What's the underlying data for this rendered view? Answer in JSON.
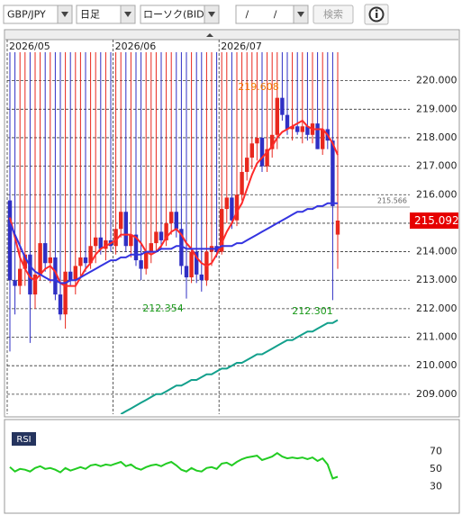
{
  "toolbar": {
    "symbol": "GBP/JPY",
    "period": "日足",
    "chart_type": "ローソク(BID)",
    "date": "/ /",
    "search": "検索"
  },
  "chart_data": [
    {
      "type": "candlestick",
      "categories": [
        "2026/05",
        null,
        null,
        null,
        null,
        null,
        null,
        null,
        null,
        null,
        null,
        null,
        null,
        null,
        null,
        null,
        null,
        null,
        null,
        null,
        null,
        "2026/06",
        null,
        null,
        null,
        null,
        null,
        null,
        null,
        null,
        null,
        null,
        null,
        null,
        null,
        null,
        null,
        null,
        null,
        null,
        null,
        null,
        "2026/07",
        null,
        null,
        null,
        null,
        null,
        null,
        null,
        null,
        null,
        null,
        null,
        null,
        null,
        null,
        null,
        null,
        null,
        null,
        null,
        null,
        null,
        null,
        null
      ],
      "open": [
        215.8,
        213.0,
        212.8,
        213.4,
        213.9,
        212.5,
        213.2,
        214.3,
        213.6,
        213.8,
        212.5,
        211.8,
        213.3,
        213.0,
        213.5,
        213.8,
        213.6,
        214.2,
        214.5,
        214.1,
        214.4,
        214.2,
        214.8,
        215.4,
        214.2,
        214.6,
        213.7,
        213.4,
        214.0,
        214.3,
        214.7,
        214.4,
        215.0,
        215.4,
        214.8,
        213.5,
        213.1,
        214.0,
        213.2,
        213.0,
        214.0,
        214.2,
        214.0,
        215.5,
        215.9,
        215.1,
        216.0,
        216.8,
        217.3,
        217.8,
        218.0,
        217.0,
        217.6,
        218.1,
        219.4,
        218.8,
        218.3,
        218.4,
        218.2,
        218.4,
        218.1,
        218.5,
        217.6,
        218.3,
        217.9,
        214.6
      ],
      "high": 219.608,
      "low": [
        210.5,
        211.8,
        212.5,
        212.8,
        210.8,
        212.0,
        213.0,
        213.3,
        212.9,
        212.3,
        211.6,
        211.3,
        212.8,
        212.5,
        213.1,
        213.3,
        213.4,
        213.6,
        213.9,
        213.7,
        214.0,
        213.9,
        214.5,
        214.0,
        213.8,
        213.5,
        213.0,
        213.2,
        213.6,
        214.0,
        214.1,
        214.2,
        214.6,
        214.5,
        213.2,
        212.354,
        212.9,
        212.9,
        212.6,
        212.8,
        213.5,
        213.8,
        213.9,
        215.0,
        214.8,
        214.9,
        215.8,
        216.5,
        216.9,
        217.2,
        216.8,
        216.8,
        217.3,
        217.6,
        218.6,
        218.1,
        217.9,
        218.1,
        217.8,
        217.9,
        217.8,
        217.6,
        217.4,
        217.6,
        212.301,
        213.4
      ],
      "close": [
        213.0,
        212.8,
        213.4,
        213.9,
        212.5,
        213.2,
        214.3,
        213.6,
        213.8,
        212.5,
        211.8,
        213.3,
        213.0,
        213.5,
        213.8,
        213.6,
        214.2,
        214.5,
        214.1,
        214.4,
        214.2,
        214.8,
        215.4,
        214.2,
        214.6,
        213.7,
        213.4,
        214.0,
        214.3,
        214.7,
        214.4,
        215.0,
        215.4,
        214.8,
        213.5,
        213.1,
        214.0,
        213.2,
        213.0,
        214.0,
        214.2,
        214.0,
        215.5,
        215.9,
        215.1,
        216.0,
        216.8,
        217.3,
        217.8,
        218.0,
        217.0,
        217.6,
        218.1,
        219.4,
        218.8,
        218.3,
        218.4,
        218.2,
        218.4,
        218.1,
        218.5,
        217.6,
        218.3,
        217.9,
        215.6,
        215.092
      ],
      "up_color": "#e8281e",
      "down_color": "#2f2fc4",
      "lines": [
        {
          "color": "#ff2a2a",
          "values": [
            215.2,
            214.5,
            213.8,
            213.4,
            213.1,
            213.0,
            213.2,
            213.4,
            213.5,
            213.3,
            212.9,
            212.8,
            212.8,
            212.8,
            213.1,
            213.4,
            213.6,
            213.9,
            214.1,
            214.2,
            214.3,
            214.4,
            214.6,
            214.6,
            214.6,
            214.5,
            214.3,
            214.0,
            213.9,
            214.0,
            214.2,
            214.5,
            214.7,
            214.8,
            214.6,
            214.3,
            214.1,
            213.8,
            213.6,
            213.5,
            213.6,
            213.9,
            214.3,
            214.7,
            215.0,
            215.4,
            215.7,
            216.2,
            216.7,
            217.1,
            217.3,
            217.5,
            217.7,
            218.0,
            218.2,
            218.3,
            218.4,
            218.5,
            218.6,
            218.4,
            218.3,
            218.3,
            218.3,
            218.1,
            217.8,
            217.4
          ]
        },
        {
          "color": "#3434e0",
          "values": [
            215.0,
            214.6,
            214.2,
            213.8,
            213.5,
            213.3,
            213.2,
            213.1,
            213.0,
            213.0,
            212.9,
            212.9,
            213.0,
            213.0,
            213.1,
            213.2,
            213.3,
            213.4,
            213.5,
            213.6,
            213.7,
            213.7,
            213.8,
            213.8,
            213.9,
            213.9,
            213.9,
            214.0,
            214.0,
            214.0,
            214.1,
            214.1,
            214.1,
            214.2,
            214.2,
            214.1,
            214.1,
            214.1,
            214.1,
            214.1,
            214.1,
            214.1,
            214.2,
            214.2,
            214.2,
            214.3,
            214.3,
            214.4,
            214.5,
            214.6,
            214.7,
            214.8,
            214.9,
            215.0,
            215.1,
            215.2,
            215.3,
            215.4,
            215.4,
            215.5,
            215.5,
            215.6,
            215.6,
            215.7,
            215.7,
            215.7
          ]
        },
        {
          "color": "#13a08c",
          "values": [
            null,
            null,
            null,
            null,
            null,
            null,
            null,
            null,
            null,
            null,
            null,
            null,
            null,
            null,
            null,
            null,
            null,
            null,
            null,
            null,
            null,
            null,
            208.3,
            208.4,
            208.5,
            208.6,
            208.7,
            208.8,
            208.9,
            209.0,
            209.0,
            209.1,
            209.2,
            209.3,
            209.3,
            209.4,
            209.5,
            209.5,
            209.6,
            209.7,
            209.7,
            209.8,
            209.9,
            209.9,
            210.0,
            210.1,
            210.1,
            210.2,
            210.3,
            210.4,
            210.4,
            210.5,
            210.6,
            210.7,
            210.8,
            210.9,
            210.9,
            211.0,
            211.1,
            211.2,
            211.2,
            211.3,
            211.4,
            211.5,
            211.5,
            211.6
          ]
        }
      ],
      "ylim": [
        208.3,
        221.0
      ],
      "yticks": [
        {
          "value": 209,
          "label": "209.000"
        },
        {
          "value": 210,
          "label": "210.000"
        },
        {
          "value": 211,
          "label": "211.000"
        },
        {
          "value": 212,
          "label": "212.000"
        },
        {
          "value": 213,
          "label": "213.000"
        },
        {
          "value": 214,
          "label": "214.000"
        },
        {
          "value": 215,
          "label": "215.000"
        },
        {
          "value": 216,
          "label": "216.000"
        },
        {
          "value": 217,
          "label": "217.000"
        },
        {
          "value": 218,
          "label": "218.000"
        },
        {
          "value": 219,
          "label": "219.000"
        },
        {
          "value": 220,
          "label": "220.000"
        }
      ],
      "grid": true,
      "last": 215.092,
      "last_color": "#e60000",
      "reference": 215.566,
      "high_color": "#f07800",
      "lows": [
        212.354,
        212.301
      ],
      "low_color": "#1a9a1a"
    },
    {
      "type": "line",
      "title": "RSI",
      "color": "#22cc22",
      "values": [
        52,
        47,
        50,
        49,
        47,
        51,
        53,
        50,
        51,
        49,
        46,
        51,
        48,
        50,
        52,
        50,
        54,
        55,
        53,
        55,
        54,
        56,
        58,
        53,
        55,
        51,
        49,
        52,
        54,
        55,
        53,
        56,
        58,
        54,
        49,
        47,
        51,
        48,
        47,
        51,
        52,
        50,
        56,
        57,
        54,
        58,
        61,
        63,
        64,
        65,
        60,
        62,
        64,
        68,
        64,
        62,
        63,
        62,
        63,
        61,
        63,
        59,
        62,
        55,
        39,
        41
      ],
      "ylim": [
        0,
        100
      ],
      "yticks": [
        30,
        50,
        70
      ],
      "grid": false
    }
  ]
}
